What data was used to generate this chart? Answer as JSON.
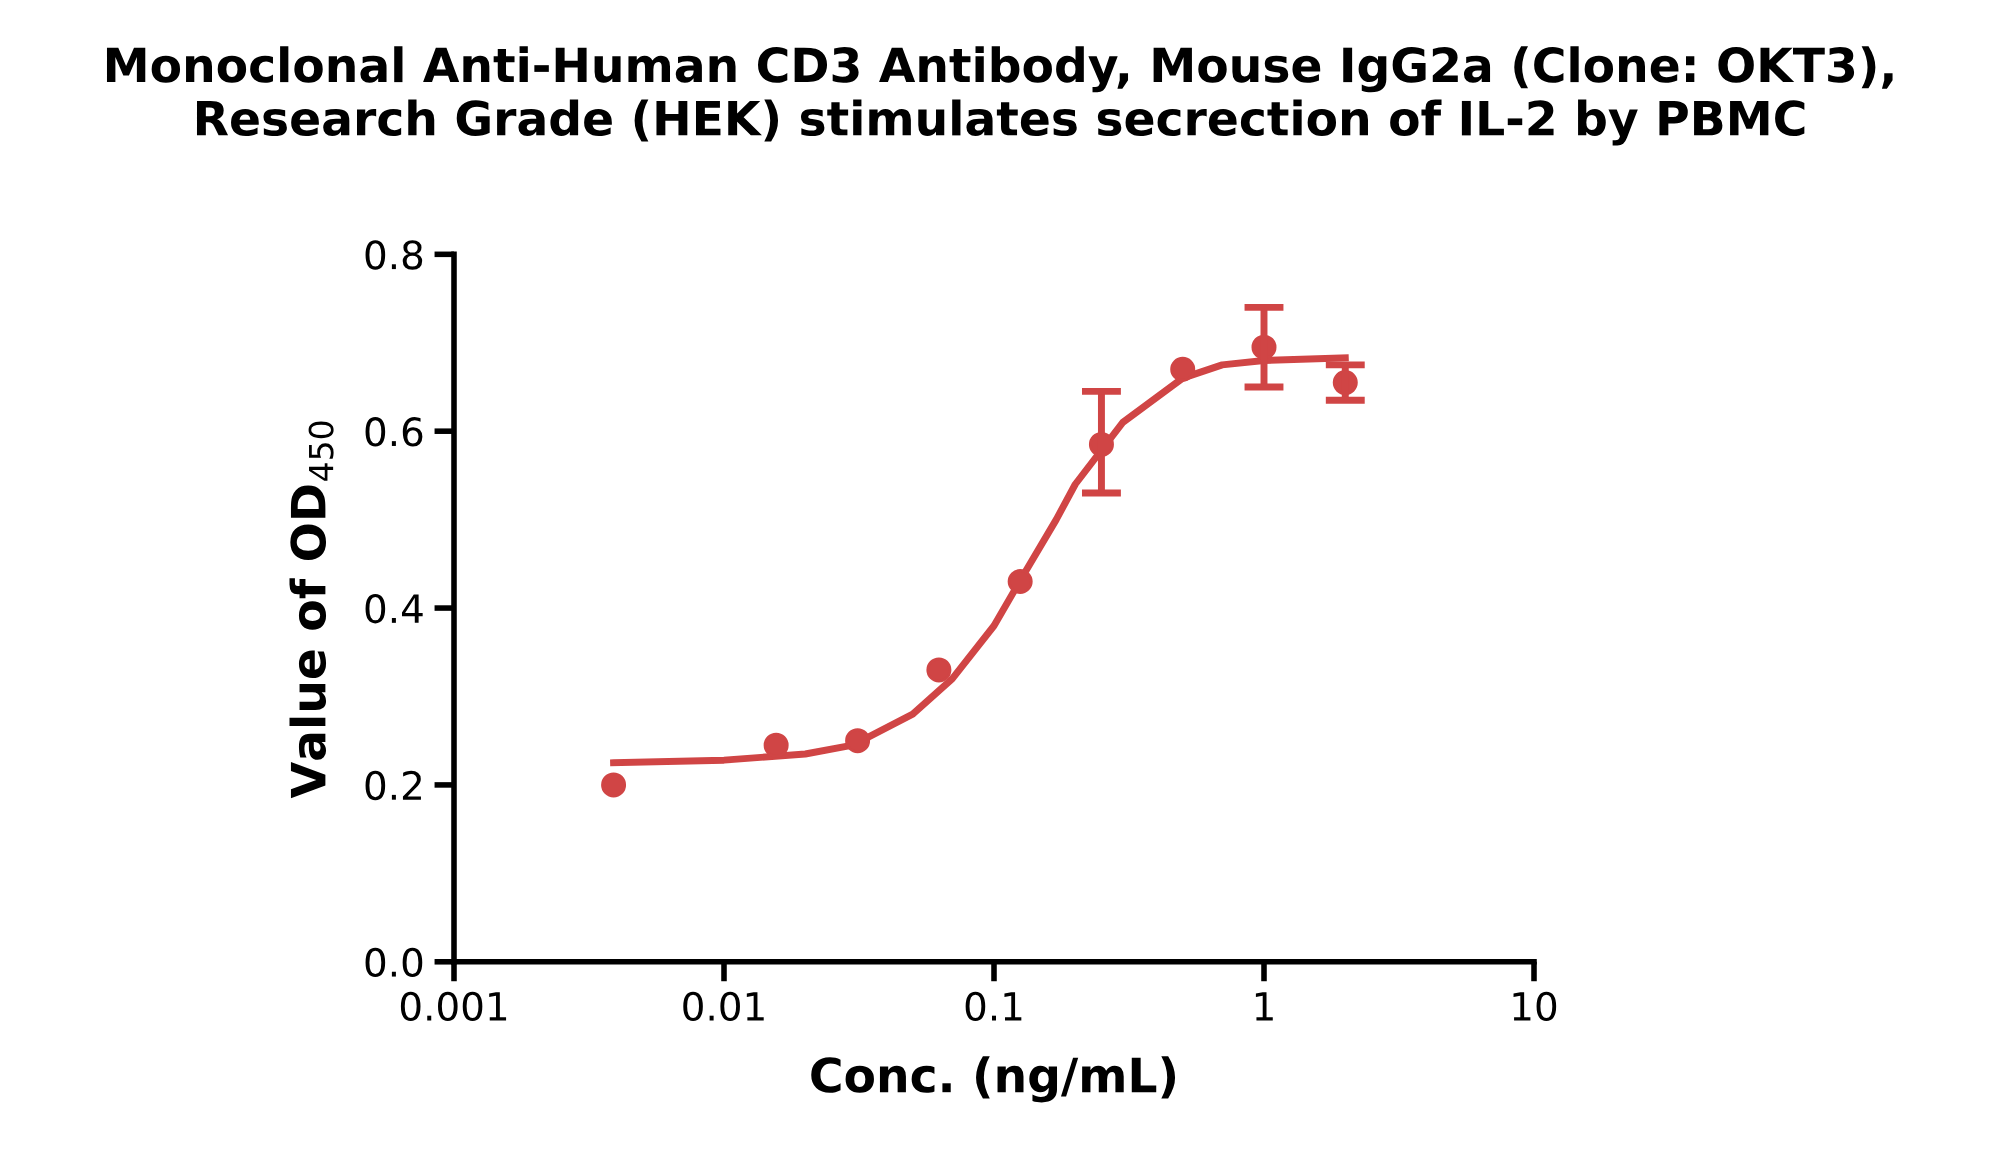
{
  "chart_data": {
    "type": "scatter",
    "title": "Monoclonal Anti-Human CD3 Antibody, Mouse IgG2a (Clone: OKT3),\nResearch Grade (HEK) stimulates secrection of IL-2 by PBMC",
    "xlabel": "Conc. (ng/mL)",
    "ylabel": "Value of OD$_{450}$",
    "log": "x",
    "grid": false,
    "xlim": [
      0.001,
      10
    ],
    "xticks": [
      0.001,
      0.01,
      0.1,
      1,
      10
    ],
    "ylim": [
      0,
      0.8
    ],
    "yticks": [
      {
        "value": 0,
        "label": "0.0"
      },
      0.2,
      0.4,
      0.6,
      0.8
    ],
    "series": [
      {
        "color": "#d04545",
        "marker": "circle",
        "x": [
          0.0039,
          0.0156,
          0.03125,
          0.0625,
          0.125,
          0.25,
          0.5,
          1,
          2
        ],
        "values": [
          0.2,
          0.245,
          0.25,
          0.33,
          0.43,
          0.585,
          0.67,
          0.695,
          0.655
        ],
        "errors": [
          null,
          null,
          null,
          null,
          null,
          [
            0.53,
            0.645
          ],
          null,
          [
            0.65,
            0.74
          ],
          [
            0.635,
            0.675
          ]
        ]
      },
      {
        "type": "line",
        "color": "#d04545",
        "marker": "none",
        "line_style": "solid",
        "x": [
          0.0039,
          0.01,
          0.02,
          0.03,
          0.05,
          0.07,
          0.1,
          0.13,
          0.17,
          0.2,
          0.3,
          0.5,
          0.7,
          1,
          2
        ],
        "values": [
          0.225,
          0.228,
          0.235,
          0.245,
          0.28,
          0.32,
          0.38,
          0.44,
          0.5,
          0.54,
          0.61,
          0.66,
          0.675,
          0.68,
          0.683
        ]
      }
    ]
  }
}
